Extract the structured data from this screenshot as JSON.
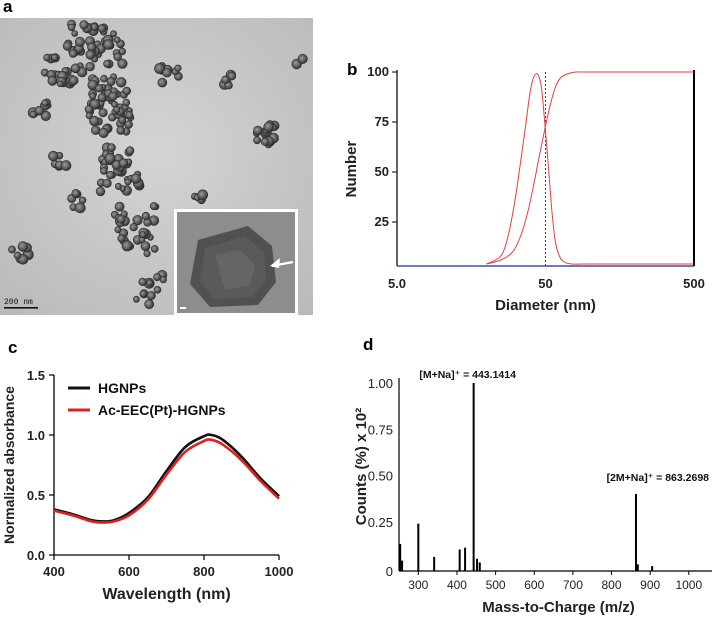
{
  "panels": {
    "a": "a",
    "b": "b",
    "c": "c",
    "d": "d"
  },
  "panel_a": {
    "scale_bar_label": "200 nm",
    "image_description_name": "tem-micrograph"
  },
  "chart_data": [
    {
      "id": "b",
      "type": "line",
      "xscale": "log",
      "xlabel": "Diameter (nm)",
      "ylabel": "Number",
      "xlim": [
        5,
        500
      ],
      "ylim": [
        3,
        100
      ],
      "xticks": [
        "5.0",
        "50",
        "500"
      ],
      "yticks": [
        "25",
        "50",
        "75",
        "100"
      ],
      "reference_line_x": 50,
      "series": [
        {
          "kind": "distribution",
          "color": "#e04040",
          "x": [
            20,
            25,
            28,
            31,
            34,
            37,
            39,
            41,
            43,
            45,
            47,
            49,
            52,
            55,
            58,
            62,
            67,
            75,
            90,
            110,
            500
          ],
          "y": [
            4,
            8,
            18,
            35,
            55,
            75,
            88,
            96,
            99,
            98,
            92,
            78,
            55,
            32,
            16,
            8,
            5,
            4,
            4,
            4,
            4
          ]
        },
        {
          "kind": "cumulative",
          "color": "#e04040",
          "x": [
            20,
            25,
            30,
            34,
            38,
            42,
            46,
            50,
            54,
            58,
            63,
            70,
            80,
            100,
            500
          ],
          "y": [
            4,
            6,
            10,
            18,
            30,
            45,
            60,
            73,
            84,
            92,
            97,
            99,
            100,
            100,
            100
          ]
        }
      ]
    },
    {
      "id": "c",
      "type": "line",
      "xlabel": "Wavelength (nm)",
      "ylabel": "Normalized absorbance",
      "xlim": [
        400,
        1000
      ],
      "ylim": [
        0,
        1.5
      ],
      "xticks": [
        "400",
        "600",
        "800",
        "1000"
      ],
      "yticks": [
        "0.0",
        "0.5",
        "1.0",
        "1.5"
      ],
      "legend_position": "top-left",
      "series": [
        {
          "name": "HGNPs",
          "color": "#111111",
          "x": [
            400,
            450,
            500,
            530,
            560,
            600,
            650,
            700,
            750,
            800,
            820,
            850,
            900,
            950,
            1000
          ],
          "y": [
            0.38,
            0.34,
            0.29,
            0.28,
            0.29,
            0.35,
            0.48,
            0.7,
            0.9,
            0.99,
            1.0,
            0.96,
            0.82,
            0.64,
            0.49
          ]
        },
        {
          "name": "Ac-EEC(Pt)-HGNPs",
          "color": "#e02020",
          "x": [
            400,
            450,
            500,
            530,
            560,
            600,
            650,
            700,
            750,
            800,
            820,
            850,
            900,
            950,
            1000
          ],
          "y": [
            0.37,
            0.33,
            0.28,
            0.27,
            0.28,
            0.33,
            0.46,
            0.67,
            0.86,
            0.95,
            0.96,
            0.92,
            0.79,
            0.62,
            0.47
          ]
        }
      ]
    },
    {
      "id": "d",
      "type": "bar",
      "xlabel": "Mass-to-Charge (m/z)",
      "ylabel": "Counts (%) x 10²",
      "xlim": [
        250,
        1060
      ],
      "ylim": [
        0,
        1.02
      ],
      "xticks": [
        "300",
        "400",
        "500",
        "600",
        "700",
        "800",
        "900",
        "1000"
      ],
      "yticks": [
        "0",
        "0.25",
        "0.50",
        "0.75",
        "1.00"
      ],
      "peaks": [
        {
          "x": 253,
          "y": 0.13
        },
        {
          "x": 258,
          "y": 0.04
        },
        {
          "x": 300,
          "y": 0.24
        },
        {
          "x": 341,
          "y": 0.06
        },
        {
          "x": 407,
          "y": 0.1
        },
        {
          "x": 421,
          "y": 0.11
        },
        {
          "x": 443.1414,
          "y": 1.0
        },
        {
          "x": 452,
          "y": 0.05
        },
        {
          "x": 459,
          "y": 0.03
        },
        {
          "x": 863.2698,
          "y": 0.4
        },
        {
          "x": 868,
          "y": 0.02
        },
        {
          "x": 905,
          "y": 0.01
        }
      ],
      "annotations": [
        {
          "text": "[M+Na]⁺ = 443.1414",
          "x": 443.1414
        },
        {
          "text": "[2M+Na]⁺ = 863.2698",
          "x": 863.2698
        }
      ]
    }
  ]
}
